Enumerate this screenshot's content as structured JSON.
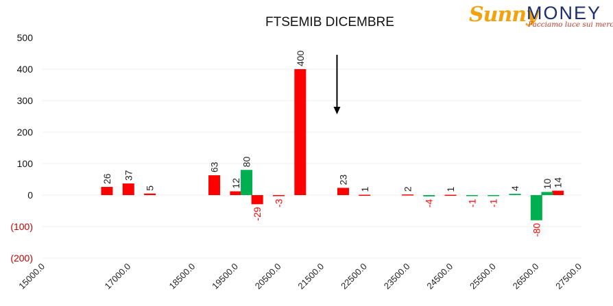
{
  "chart_data": {
    "type": "bar",
    "title": "FTSEMIB DICEMBRE",
    "xlabel": "",
    "ylabel": "",
    "xlim": [
      15000,
      27500
    ],
    "ylim": [
      -200,
      500
    ],
    "yticks": [
      500,
      400,
      300,
      200,
      100,
      0,
      -100,
      -200
    ],
    "ytick_labels": [
      "500",
      "400",
      "300",
      "200",
      "100",
      "0",
      "(100)",
      "(200)"
    ],
    "xticks": [
      15000,
      17000,
      18500,
      19500,
      20500,
      21500,
      22500,
      23500,
      24500,
      25500,
      26500,
      27500
    ],
    "xtick_labels": [
      "15000.0",
      "17000.0",
      "18500.0",
      "19500.0",
      "20500.0",
      "21500.0",
      "22500.0",
      "23500.0",
      "24500.0",
      "25500.0",
      "26500.0",
      "27500.0"
    ],
    "grid": true,
    "legend": "none",
    "arrow_annotation_x": 22000,
    "series": [
      {
        "color": "#ff0000",
        "points": [
          {
            "x": 16500,
            "value": 26
          },
          {
            "x": 17000,
            "value": 37
          },
          {
            "x": 17500,
            "value": 5
          },
          {
            "x": 19000,
            "value": 63
          },
          {
            "x": 19500,
            "value": 12
          },
          {
            "x": 20000,
            "value": -29
          },
          {
            "x": 20500,
            "value": -3
          },
          {
            "x": 21000,
            "value": 400
          },
          {
            "x": 22000,
            "value": 23
          },
          {
            "x": 22500,
            "value": 1
          },
          {
            "x": 23500,
            "value": 2
          },
          {
            "x": 24500,
            "value": 1
          },
          {
            "x": 27000,
            "value": 14
          }
        ]
      },
      {
        "color": "#00b050",
        "points": [
          {
            "x": 19750,
            "value": 80
          },
          {
            "x": 24000,
            "value": -4
          },
          {
            "x": 25000,
            "value": -1
          },
          {
            "x": 25500,
            "value": -1
          },
          {
            "x": 26000,
            "value": 4
          },
          {
            "x": 26500,
            "value": -80
          },
          {
            "x": 26750,
            "value": 10
          }
        ]
      }
    ],
    "colors": {
      "negative_label": "#ff0000",
      "positive_label": "#222222",
      "negative_tick": "#c00000"
    }
  },
  "logo": {
    "brand_left": "Sunny",
    "brand_right": "MONEY",
    "tagline": "Facciamo luce sui mercati"
  }
}
